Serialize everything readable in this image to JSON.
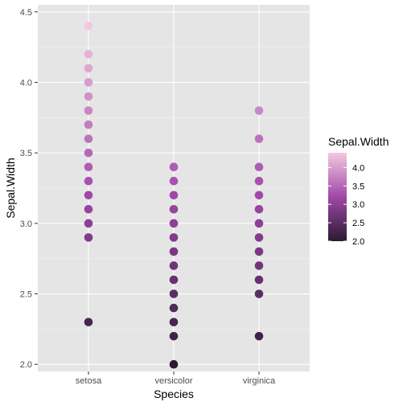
{
  "chart_data": {
    "type": "scatter",
    "title": "",
    "xlabel": "Species",
    "ylabel": "Sepal.Width",
    "categories": [
      "setosa",
      "versicolor",
      "virginica"
    ],
    "ylim": [
      1.95,
      4.55
    ],
    "yticks": [
      2.0,
      2.5,
      3.0,
      3.5,
      4.0,
      4.5
    ],
    "ytick_labels": [
      "2.0",
      "2.5",
      "3.0",
      "3.5",
      "4.0",
      "4.5"
    ],
    "grid": true,
    "points": [
      {
        "x": "setosa",
        "y": [
          2.3,
          2.9,
          3.0,
          3.1,
          3.2,
          3.3,
          3.4,
          3.5,
          3.6,
          3.7,
          3.8,
          3.9,
          4.0,
          4.1,
          4.2,
          4.4
        ]
      },
      {
        "x": "versicolor",
        "y": [
          2.0,
          2.2,
          2.3,
          2.4,
          2.5,
          2.6,
          2.7,
          2.8,
          2.9,
          3.0,
          3.1,
          3.2,
          3.3,
          3.4
        ]
      },
      {
        "x": "virginica",
        "y": [
          2.2,
          2.5,
          2.6,
          2.7,
          2.8,
          2.9,
          3.0,
          3.1,
          3.2,
          3.3,
          3.4,
          3.6,
          3.8
        ]
      }
    ],
    "color_scale": {
      "variable": "Sepal.Width",
      "domain": [
        2.0,
        4.4
      ],
      "low_color": "#2a1a33",
      "mid_color": "#a048a8",
      "high_color": "#f3c8df",
      "breaks": [
        2.0,
        2.5,
        3.0,
        3.5,
        4.0
      ],
      "break_labels": [
        "2.0",
        "2.5",
        "3.0",
        "3.5",
        "4.0"
      ]
    },
    "legend_position": "right",
    "legend_title": "Sepal.Width",
    "panel_background": "#e5e5e5",
    "grid_color": "#ffffff"
  }
}
